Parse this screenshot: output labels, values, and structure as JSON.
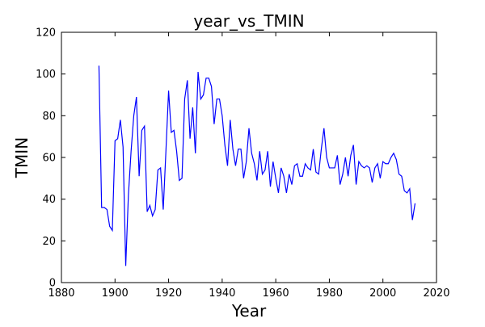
{
  "chart_data": {
    "type": "line",
    "title": "year_vs_TMIN",
    "xlabel": "Year",
    "ylabel": "TMIN",
    "xlim": [
      1880,
      2020
    ],
    "ylim": [
      0,
      120
    ],
    "xticks": [
      1880,
      1900,
      1920,
      1940,
      1960,
      1980,
      2000,
      2020
    ],
    "yticks": [
      0,
      20,
      40,
      60,
      80,
      100,
      120
    ],
    "grid": false,
    "legend": "none",
    "series": [
      {
        "color": "#0000ff",
        "x": [
          1894,
          1895,
          1896,
          1897,
          1898,
          1899,
          1900,
          1901,
          1902,
          1903,
          1904,
          1905,
          1906,
          1907,
          1908,
          1909,
          1910,
          1911,
          1912,
          1913,
          1914,
          1915,
          1916,
          1917,
          1918,
          1919,
          1920,
          1921,
          1922,
          1923,
          1924,
          1925,
          1926,
          1927,
          1928,
          1929,
          1930,
          1931,
          1932,
          1933,
          1934,
          1935,
          1936,
          1937,
          1938,
          1939,
          1940,
          1941,
          1942,
          1943,
          1944,
          1945,
          1946,
          1947,
          1948,
          1949,
          1950,
          1951,
          1952,
          1953,
          1954,
          1955,
          1956,
          1957,
          1958,
          1959,
          1960,
          1961,
          1962,
          1963,
          1964,
          1965,
          1966,
          1967,
          1968,
          1969,
          1970,
          1971,
          1972,
          1973,
          1974,
          1975,
          1976,
          1977,
          1978,
          1979,
          1980,
          1981,
          1982,
          1983,
          1984,
          1985,
          1986,
          1987,
          1988,
          1989,
          1990,
          1991,
          1992,
          1993,
          1994,
          1995,
          1996,
          1997,
          1998,
          1999,
          2000,
          2001,
          2002,
          2003,
          2004,
          2005,
          2006,
          2007,
          2008,
          2009,
          2010,
          2011,
          2012
        ],
        "y": [
          104,
          36,
          36,
          35,
          27,
          25,
          68,
          69,
          78,
          65,
          8,
          42,
          63,
          80,
          89,
          51,
          73,
          75,
          34,
          37,
          32,
          35,
          54,
          55,
          35,
          63,
          92,
          72,
          73,
          63,
          49,
          50,
          88,
          97,
          69,
          84,
          62,
          101,
          88,
          90,
          98,
          98,
          94,
          76,
          88,
          88,
          80,
          66,
          56,
          78,
          64,
          56,
          64,
          64,
          50,
          58,
          74,
          62,
          57,
          49,
          63,
          52,
          54,
          63,
          46,
          58,
          50,
          43,
          55,
          51,
          43,
          52,
          47,
          56,
          57,
          51,
          51,
          57,
          55,
          54,
          64,
          53,
          52,
          64,
          74,
          60,
          55,
          55,
          55,
          61,
          47,
          52,
          60,
          51,
          61,
          66,
          47,
          58,
          56,
          55,
          56,
          55,
          48,
          55,
          57,
          50,
          58,
          57,
          57,
          60,
          62,
          59,
          52,
          51,
          44,
          43,
          45,
          30,
          38
        ]
      }
    ]
  }
}
